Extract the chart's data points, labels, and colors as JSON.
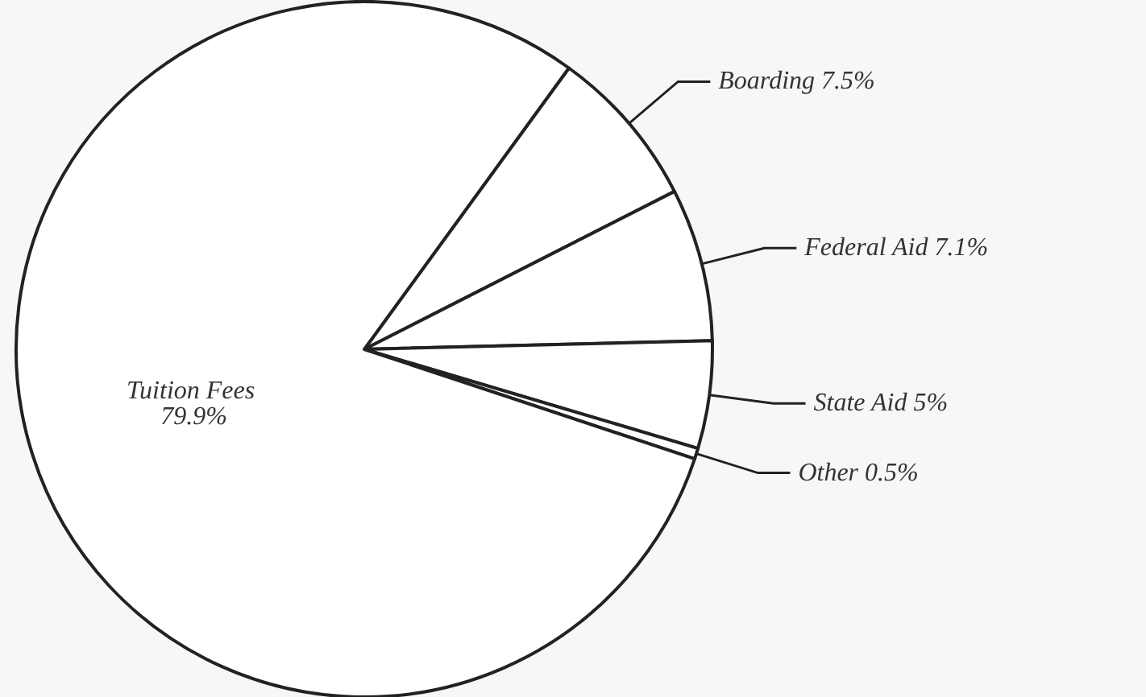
{
  "chart_data": {
    "type": "pie",
    "categories": [
      "Boarding 7.5%",
      "Federal Aid 7.1%",
      "State Aid 5%",
      "Other 0.5%",
      "Tuition Fees 79.9%"
    ],
    "values": [
      7.5,
      7.1,
      5,
      0.5,
      79.9
    ],
    "colors": [
      "#ffffff",
      "#ffffff",
      "#ffffff",
      "#ffffff",
      "#ffffff"
    ],
    "legend": false
  }
}
